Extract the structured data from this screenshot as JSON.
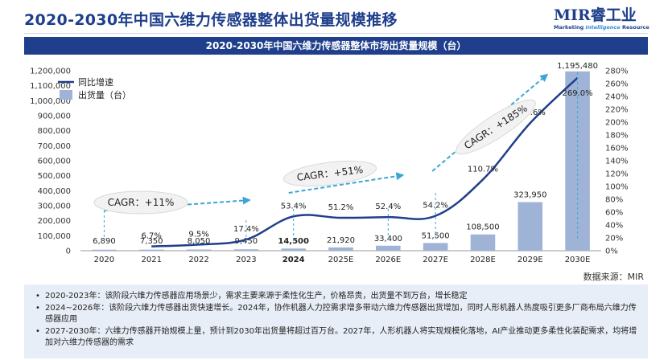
{
  "page": {
    "title": "2020-2030年中国六维力传感器整体出货量规模推移",
    "logo_main": "MIR睿工业",
    "logo_sub_a": "Marketing",
    "logo_sub_b": "Intelligence",
    "logo_sub_c": "Resource",
    "source": "数据来源：MIR"
  },
  "notes": [
    "2020-2023年：该阶段六维力传感器应用场景少，需求主要来源于柔性化生产，价格昂贵，出货量不到万台，增长稳定",
    "2024~2026年：该阶段六维力传感器出货快速增长。2024年，协作机器人力控需求增多带动六维力传感器出货增加，同时人形机器人热度吸引更多厂商布局六维力传感器应用",
    "2027-2030年：六维力传感器开始规模上量，预计到2030年出货量将超过百万台。2027年，人形机器人将实现规模化落地，AI产业推动更多柔性化装配需求，均将增加对六维力传感器的需求"
  ],
  "colors": {
    "title": "#1f3f8c",
    "bar": "#9fb3d6",
    "line": "#1f3f8c",
    "arrow": "#3aa6d6",
    "banner": "#1f3f8c",
    "notes_bg": "#e8eef7"
  },
  "chart_data": {
    "type": "bar",
    "title": "2020-2030年中国六维力传感器整体市场出货量规模（台）",
    "categories": [
      "2020",
      "2021",
      "2022",
      "2023",
      "2024",
      "2025E",
      "2026E",
      "2027E",
      "2028E",
      "2029E",
      "2030E"
    ],
    "series": [
      {
        "name": "出货量（台）",
        "axis": "left",
        "type": "bar",
        "values": [
          6890,
          7350,
          8050,
          9450,
          14500,
          21920,
          33400,
          51500,
          108500,
          323950,
          1195480
        ],
        "labels": [
          "6,890",
          "7,350",
          "8,050",
          "9,450",
          "14,500",
          "21,920",
          "33,400",
          "51,500",
          "108,500",
          "323,950",
          "1,195,480"
        ]
      },
      {
        "name": "同比增速",
        "axis": "right",
        "type": "line",
        "values": [
          null,
          6.7,
          9.5,
          17.4,
          53.4,
          51.2,
          52.4,
          54.2,
          110.7,
          198.6,
          269.0
        ],
        "labels": [
          "",
          "6.7%",
          "9.5%",
          "17.4%",
          "53.4%",
          "51.2%",
          "52.4%",
          "54.2%",
          "110.7%",
          "198.6%",
          "269.0%"
        ]
      }
    ],
    "ylim": [
      0,
      1200000
    ],
    "yticks": [
      "0",
      "100,000",
      "200,000",
      "300,000",
      "400,000",
      "500,000",
      "600,000",
      "700,000",
      "800,000",
      "900,000",
      "1,000,000",
      "1,100,000",
      "1,200,000"
    ],
    "y2lim": [
      0,
      280
    ],
    "y2ticks": [
      "0%",
      "20%",
      "40%",
      "60%",
      "80%",
      "100%",
      "120%",
      "140%",
      "160%",
      "180%",
      "200%",
      "220%",
      "240%",
      "260%",
      "280%"
    ],
    "legend": "top-left",
    "annotations": [
      {
        "text": "CAGR：+11%",
        "from": "2020",
        "to": "2023"
      },
      {
        "text": "CAGR：+51%",
        "from": "2024",
        "to": "2026E"
      },
      {
        "text": "CAGR：+185%",
        "from": "2027E",
        "to": "2030E"
      }
    ]
  }
}
